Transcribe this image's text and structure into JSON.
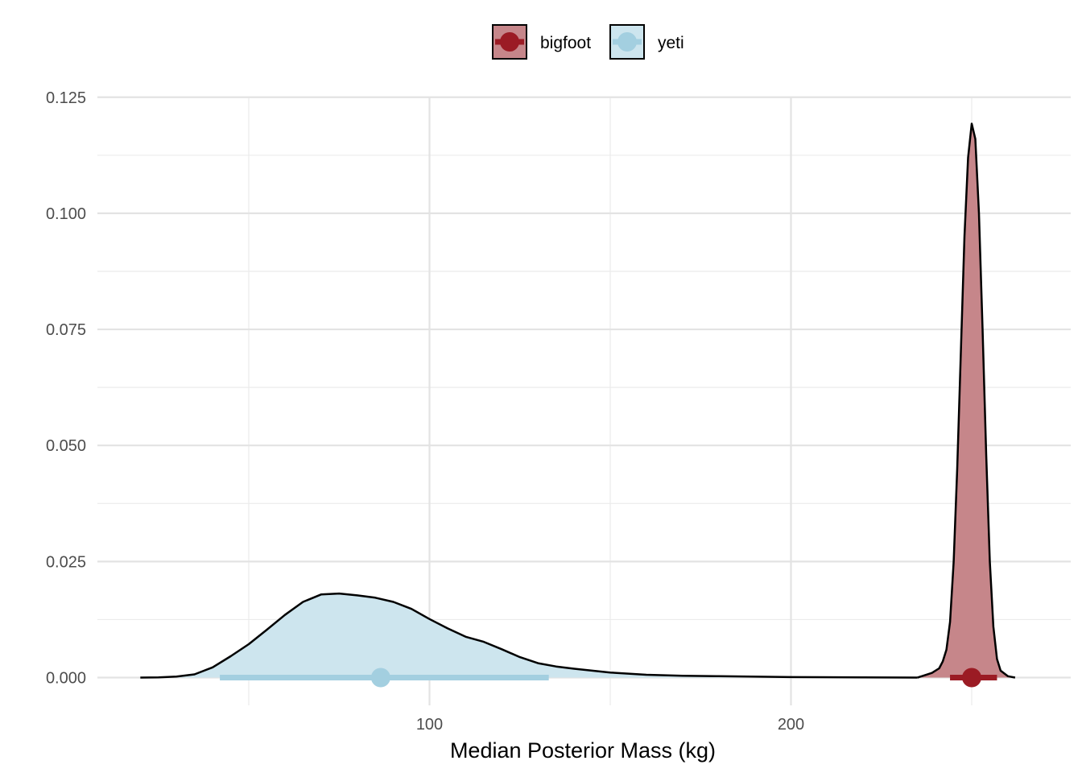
{
  "chart_data": {
    "type": "density",
    "title": "",
    "xlabel": "Median Posterior Mass (kg)",
    "ylabel": "",
    "xlim": [
      8,
      275
    ],
    "ylim": [
      -0.0045,
      0.1255
    ],
    "x_ticks": [
      100,
      200
    ],
    "x_tick_labels": [
      "100",
      "200"
    ],
    "x_minor_ticks": [
      50,
      150,
      250
    ],
    "y_ticks": [
      0,
      0.025,
      0.05,
      0.075,
      0.1,
      0.125
    ],
    "y_tick_labels": [
      "0.000",
      "0.025",
      "0.050",
      "0.075",
      "0.100",
      "0.125"
    ],
    "y_minor_ticks": [
      0.0125,
      0.0375,
      0.0625,
      0.0875,
      0.1125
    ],
    "grid": true,
    "legend_position": "top",
    "legend": [
      {
        "label": "bigfoot",
        "color": "#9b1b24"
      },
      {
        "label": "yeti",
        "color": "#a3cfe0"
      }
    ],
    "series": [
      {
        "name": "yeti",
        "fill": "#cde5ee",
        "point_color": "#a3cfe0",
        "x": [
          20,
          25,
          30,
          35,
          40,
          45,
          50,
          55,
          60,
          65,
          70,
          75,
          80,
          85,
          90,
          95,
          100,
          105,
          110,
          115,
          120,
          125,
          130,
          135,
          140,
          150,
          160,
          170,
          180,
          200,
          220,
          235
        ],
        "y": [
          0.0,
          5e-05,
          0.0002,
          0.0007,
          0.0022,
          0.0046,
          0.0072,
          0.0103,
          0.0135,
          0.0163,
          0.0179,
          0.0181,
          0.0177,
          0.0172,
          0.0163,
          0.0148,
          0.0126,
          0.0106,
          0.0088,
          0.0077,
          0.0061,
          0.0044,
          0.0031,
          0.0024,
          0.0019,
          0.0011,
          0.0006,
          0.0004,
          0.0003,
          0.0001,
          5e-05,
          0.0
        ],
        "point_estimate": 86.5,
        "interval": [
          42,
          133
        ]
      },
      {
        "name": "bigfoot",
        "fill": "#c6868a",
        "point_color": "#9b1b24",
        "x": [
          235,
          239,
          241,
          242,
          243,
          244,
          245,
          246,
          247,
          248,
          249,
          250,
          251,
          252,
          253,
          254,
          255,
          256,
          257,
          258,
          260,
          262
        ],
        "y": [
          0.0,
          0.001,
          0.002,
          0.0035,
          0.006,
          0.012,
          0.025,
          0.045,
          0.07,
          0.095,
          0.112,
          0.1193,
          0.116,
          0.1,
          0.075,
          0.048,
          0.025,
          0.011,
          0.004,
          0.0015,
          0.0003,
          0.0
        ],
        "point_estimate": 250,
        "interval": [
          244,
          257
        ]
      }
    ]
  }
}
